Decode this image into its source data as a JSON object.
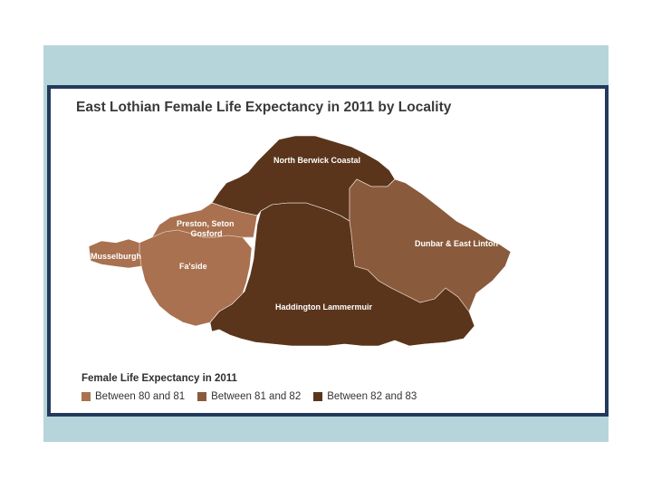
{
  "title": "East Lothian Female Life Expectancy in 2011 by Locality",
  "colors": {
    "band_80_81": "#a9714f",
    "band_81_82": "#8a5a3c",
    "band_82_83": "#5a351b",
    "slide_background": "#b6d5da",
    "panel_border": "#233a5c"
  },
  "regions": [
    {
      "id": "musselburgh",
      "name": "Musselburgh",
      "band": "Between 80 and 81"
    },
    {
      "id": "preston",
      "name_lines": [
        "Preston, Seton",
        "Gosford"
      ],
      "band": "Between 80 and 81"
    },
    {
      "id": "faside",
      "name": "Fa'side",
      "band": "Between 80 and 81"
    },
    {
      "id": "north-berwick",
      "name": "North Berwick Coastal",
      "band": "Between 82 and 83"
    },
    {
      "id": "haddington",
      "name": "Haddington Lammermuir",
      "band": "Between 82 and 83"
    },
    {
      "id": "dunbar",
      "name": "Dunbar & East Linton",
      "band": "Between 81 and 82"
    }
  ],
  "legend": {
    "title": "Female Life Expectancy in 2011",
    "items": [
      {
        "label": "Between 80 and 81",
        "color": "#a9714f"
      },
      {
        "label": "Between 81 and 82",
        "color": "#8a5a3c"
      },
      {
        "label": "Between 82 and 83",
        "color": "#5a351b"
      }
    ]
  }
}
